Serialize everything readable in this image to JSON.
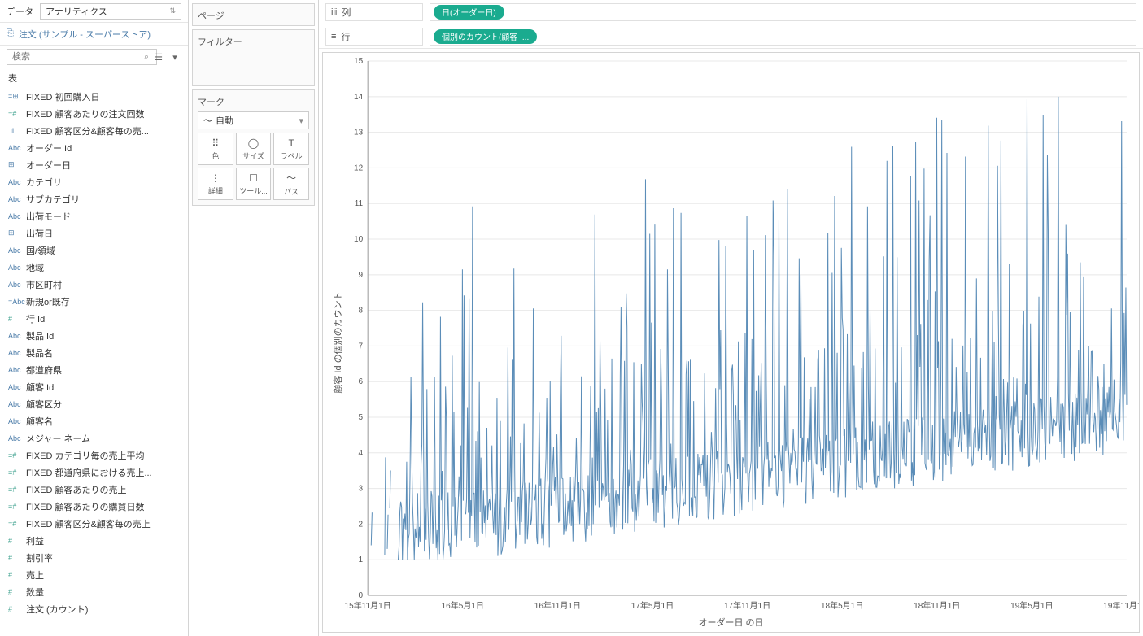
{
  "leftPanel": {
    "dataTabLabel": "データ",
    "analyticsDropdown": "アナリティクス",
    "datasourceName": "注文 (サンプル - スーパーストア)",
    "searchPlaceholder": "検索",
    "tablesHeader": "表",
    "fields": [
      {
        "type": "=⊞",
        "cls": "dim",
        "name": "FIXED 初回購入日"
      },
      {
        "type": "=#",
        "cls": "calc",
        "name": "FIXED 顧客あたりの注文回数"
      },
      {
        "type": ".ıl.",
        "cls": "dim",
        "name": "FIXED 顧客区分&顧客毎の売..."
      },
      {
        "type": "Abc",
        "cls": "dim",
        "name": "オーダー Id"
      },
      {
        "type": "⊞",
        "cls": "dim",
        "name": "オーダー日"
      },
      {
        "type": "Abc",
        "cls": "dim",
        "name": "カテゴリ"
      },
      {
        "type": "Abc",
        "cls": "dim",
        "name": "サブカテゴリ"
      },
      {
        "type": "Abc",
        "cls": "dim",
        "name": "出荷モード"
      },
      {
        "type": "⊞",
        "cls": "dim",
        "name": "出荷日"
      },
      {
        "type": "Abc",
        "cls": "dim",
        "name": "国/領域"
      },
      {
        "type": "Abc",
        "cls": "dim",
        "name": "地域"
      },
      {
        "type": "Abc",
        "cls": "dim",
        "name": "市区町村"
      },
      {
        "type": "=Abc",
        "cls": "dim",
        "name": "新規or既存"
      },
      {
        "type": "#",
        "cls": "meas",
        "name": "行 Id"
      },
      {
        "type": "Abc",
        "cls": "dim",
        "name": "製品 Id"
      },
      {
        "type": "Abc",
        "cls": "dim",
        "name": "製品名"
      },
      {
        "type": "Abc",
        "cls": "dim",
        "name": "都道府県"
      },
      {
        "type": "Abc",
        "cls": "dim",
        "name": "顧客 Id"
      },
      {
        "type": "Abc",
        "cls": "dim",
        "name": "顧客区分"
      },
      {
        "type": "Abc",
        "cls": "dim",
        "name": "顧客名"
      },
      {
        "type": "Abc",
        "cls": "dim",
        "name": "メジャー ネーム"
      },
      {
        "type": "=#",
        "cls": "calc",
        "name": "FIXED カテゴリ毎の売上平均"
      },
      {
        "type": "=#",
        "cls": "calc",
        "name": "FIXED 都道府県における売上..."
      },
      {
        "type": "=#",
        "cls": "calc",
        "name": "FIXED 顧客あたりの売上"
      },
      {
        "type": "=#",
        "cls": "calc",
        "name": "FIXED 顧客あたりの購買日数"
      },
      {
        "type": "=#",
        "cls": "calc",
        "name": "FIXED 顧客区分&顧客毎の売上"
      },
      {
        "type": "#",
        "cls": "meas",
        "name": "利益"
      },
      {
        "type": "#",
        "cls": "meas",
        "name": "割引率"
      },
      {
        "type": "#",
        "cls": "meas",
        "name": "売上"
      },
      {
        "type": "#",
        "cls": "meas",
        "name": "数量"
      },
      {
        "type": "#",
        "cls": "meas",
        "name": "注文 (カウント)"
      }
    ]
  },
  "midPanel": {
    "pagesTitle": "ページ",
    "filtersTitle": "フィルター",
    "marksTitle": "マーク",
    "marksType": "自動",
    "markButtons": [
      {
        "icon": "⠿",
        "label": "色"
      },
      {
        "icon": "◯",
        "label": "サイズ"
      },
      {
        "icon": "T",
        "label": "ラベル"
      },
      {
        "icon": "⋮",
        "label": "詳細"
      },
      {
        "icon": "☐",
        "label": "ツール..."
      },
      {
        "icon": "〜",
        "label": "パス"
      }
    ]
  },
  "shelves": {
    "columnsLabel": "列",
    "columnsPill": "日(オーダー日)",
    "rowsLabel": "行",
    "rowsPill": "個別のカウント(顧客 I..."
  },
  "chart": {
    "yAxisTitle": "顧客 Id の個別のカウント",
    "xAxisTitle": "オーダー日 の日",
    "yTicks": [
      0,
      1,
      2,
      3,
      4,
      5,
      6,
      7,
      8,
      9,
      10,
      11,
      12,
      13,
      14,
      15
    ],
    "xTickLabels": [
      "15年11月1日",
      "16年5月1日",
      "16年11月1日",
      "17年5月1日",
      "17年11月1日",
      "18年5月1日",
      "18年11月1日",
      "19年5月1日",
      "19年11月1日"
    ],
    "lineColor": "#5b8db8",
    "background": "#ffffff",
    "ylim": [
      0,
      15
    ],
    "seed": 42,
    "pointCount": 900
  }
}
